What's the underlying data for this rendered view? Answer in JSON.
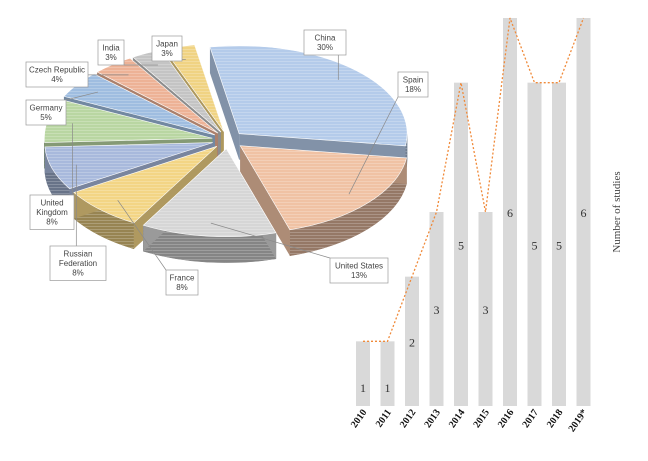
{
  "chart_data": [
    {
      "type": "pie",
      "style": "3d-exploded",
      "slices": [
        {
          "name": "China",
          "value": 30,
          "label": "30%",
          "color": "#b4cbea"
        },
        {
          "name": "Spain",
          "value": 18,
          "label": "18%",
          "color": "#f0c2a4"
        },
        {
          "name": "United States",
          "value": 13,
          "label": "13%",
          "color": "#d6d6d6"
        },
        {
          "name": "France",
          "value": 8,
          "label": "8%",
          "color": "#f3d585"
        },
        {
          "name": "Russian Federation",
          "value": 8,
          "label": "8%",
          "color": "#a8b9dc"
        },
        {
          "name": "United Kingdom",
          "value": 8,
          "label": "8%",
          "color": "#b9d6a2"
        },
        {
          "name": "Germany",
          "value": 5,
          "label": "5%",
          "color": "#9fbde0"
        },
        {
          "name": "Czech Republic",
          "value": 4,
          "label": "4%",
          "color": "#edb296"
        },
        {
          "name": "India",
          "value": 3,
          "label": "3%",
          "color": "#c4c4c4"
        },
        {
          "name": "Japan",
          "value": 3,
          "label": "3%",
          "color": "#f0d383"
        }
      ]
    },
    {
      "type": "bar",
      "categories": [
        "2010",
        "2011",
        "2012",
        "2013",
        "2014",
        "2015",
        "2016",
        "2017",
        "2018",
        "2019*"
      ],
      "values": [
        1,
        1,
        2,
        3,
        5,
        3,
        6,
        5,
        5,
        6
      ],
      "ylabel": "Number of studies",
      "ylim": [
        0,
        6
      ],
      "bar_color": "#d9d9d9",
      "trend_color": "#f08a3a"
    }
  ]
}
